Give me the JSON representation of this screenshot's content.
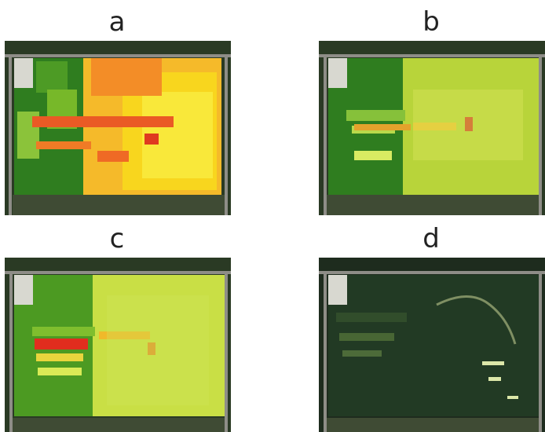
{
  "panels": [
    {
      "label": "a",
      "description": "field-heatmap-coarse"
    },
    {
      "label": "b",
      "description": "field-heatmap-fine"
    },
    {
      "label": "c",
      "description": "field-heatmap-fine-detailed"
    },
    {
      "label": "d",
      "description": "satellite-true-color"
    }
  ],
  "colors": {
    "red": "#e0371f",
    "orange": "#f39a2a",
    "yellow": "#f7e11a",
    "light_green": "#b8d43a",
    "green": "#3f8a23",
    "dark_green": "#1f5e18",
    "road": "#8e8d87",
    "dark_field": "#1f3522"
  }
}
